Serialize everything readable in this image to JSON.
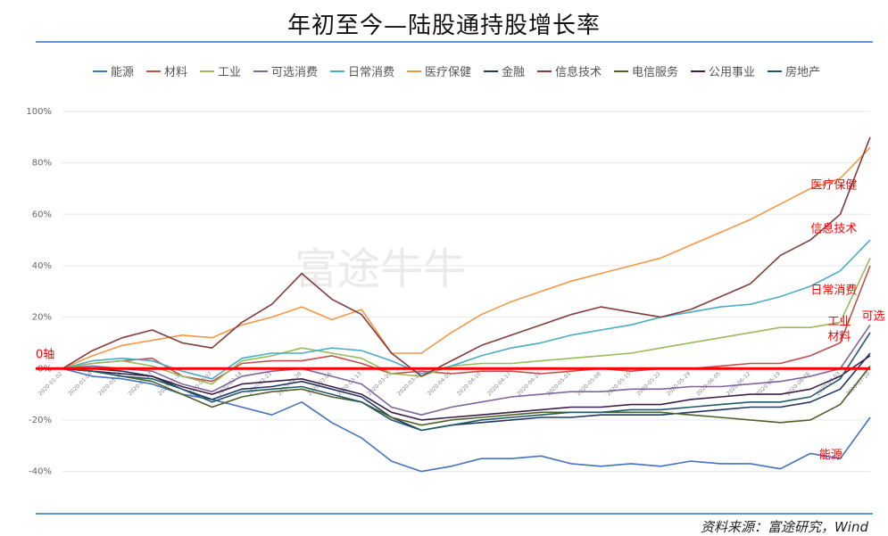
{
  "title": "年初至今—陆股通持股增长率",
  "source": "资料来源：富途研究，Wind",
  "watermark": "富途牛牛",
  "colors": {
    "zero_line": "#ff0000",
    "rule": "#5b9bd5"
  },
  "chart_data": {
    "type": "line",
    "ylim": [
      -45,
      100
    ],
    "yticks": [
      -40,
      -20,
      0,
      20,
      40,
      60,
      80,
      100
    ],
    "ytick_labels": [
      "-40%",
      "-20%",
      "0%",
      "20%",
      "40%",
      "60%",
      "80%",
      "100%"
    ],
    "x": [
      "2020-01-02",
      "2020-01-09",
      "2020-01-16",
      "2020-01-23",
      "2020-01-31",
      "2020-02-07",
      "2020-02-14",
      "2020-02-21",
      "2020-02-28",
      "2020-03-06",
      "2020-03-13",
      "2020-03-20",
      "2020-03-27",
      "2020-04-03",
      "2020-04-10",
      "2020-04-17",
      "2020-04-24",
      "2020-05-01",
      "2020-05-08",
      "2020-05-15",
      "2020-05-22",
      "2020-05-29",
      "2020-06-05",
      "2020-06-12",
      "2020-06-19",
      "2020-06-26",
      "2020-07-03",
      "2020-07-10"
    ],
    "xtick_labels": [
      "2020-01-02",
      "2020-01-09",
      "2020-01-16",
      "2020-01-23",
      "2020-01-31",
      "2020-02-07",
      "2020-02-14",
      "2020-02-21",
      "2020-02-28",
      "2020-03-06",
      "2020-03-13",
      "2020-03-20",
      "2020-03-27",
      "2020-04-03",
      "2020-04-10",
      "2020-04-17",
      "2020-04-24",
      "2020-05-01",
      "2020-05-08",
      "2020-05-15",
      "2020-05-22",
      "2020-05-29",
      "2020-06-05",
      "2020-06-12",
      "2020-06-19",
      "2020-06-26",
      "2020-07-03",
      "2020-07-10"
    ],
    "legend_position": "top",
    "zero_line_label": "0轴",
    "series": [
      {
        "name": "能源",
        "color": "#4472c4",
        "values": [
          0,
          -3,
          -4,
          -6,
          -10,
          -12,
          -15,
          -18,
          -13,
          -21,
          -27,
          -36,
          -40,
          -38,
          -35,
          -35,
          -34,
          -37,
          -38,
          -37,
          -38,
          -36,
          -37,
          -37,
          -39,
          -33,
          -35,
          -19
        ]
      },
      {
        "name": "材料",
        "color": "#c0504d",
        "values": [
          0,
          2,
          3,
          4,
          -3,
          -5,
          2,
          3,
          3,
          5,
          2,
          -2,
          -1,
          -2,
          -1,
          -1,
          -2,
          -1,
          0,
          -1,
          0,
          0,
          1,
          2,
          2,
          5,
          10,
          40
        ]
      },
      {
        "name": "工业",
        "color": "#9bbb59",
        "values": [
          0,
          2,
          3,
          1,
          -3,
          -6,
          3,
          5,
          8,
          6,
          4,
          -2,
          -3,
          1,
          2,
          2,
          3,
          4,
          5,
          6,
          8,
          10,
          12,
          14,
          16,
          16,
          18,
          43
        ]
      },
      {
        "name": "可选消费",
        "color": "#8064a2",
        "values": [
          0,
          1,
          0,
          -1,
          -6,
          -9,
          -3,
          -1,
          0,
          -3,
          -6,
          -15,
          -18,
          -15,
          -13,
          -11,
          -10,
          -9,
          -9,
          -8,
          -8,
          -7,
          -7,
          -6,
          -5,
          -3,
          0,
          17
        ]
      },
      {
        "name": "日常消费",
        "color": "#4bacc6",
        "values": [
          0,
          3,
          4,
          3,
          -1,
          -4,
          4,
          6,
          6,
          8,
          7,
          3,
          -2,
          1,
          5,
          8,
          10,
          13,
          15,
          17,
          20,
          22,
          24,
          25,
          28,
          32,
          38,
          50
        ]
      },
      {
        "name": "医疗保健",
        "color": "#f79646",
        "values": [
          0,
          5,
          9,
          11,
          13,
          12,
          17,
          20,
          24,
          19,
          23,
          6,
          6,
          14,
          21,
          26,
          30,
          34,
          37,
          40,
          43,
          48,
          53,
          58,
          64,
          70,
          74,
          86
        ]
      },
      {
        "name": "金融",
        "color": "#1f3864",
        "values": [
          0,
          0,
          -1,
          -3,
          -8,
          -12,
          -8,
          -7,
          -5,
          -8,
          -11,
          -19,
          -24,
          -22,
          -21,
          -20,
          -19,
          -19,
          -18,
          -18,
          -18,
          -17,
          -16,
          -15,
          -15,
          -13,
          -8,
          6
        ]
      },
      {
        "name": "信息技术",
        "color": "#843c3c",
        "values": [
          0,
          7,
          12,
          15,
          10,
          8,
          18,
          25,
          37,
          27,
          21,
          6,
          -3,
          3,
          9,
          13,
          17,
          21,
          24,
          22,
          20,
          23,
          28,
          33,
          44,
          50,
          60,
          90
        ]
      },
      {
        "name": "电信服务",
        "color": "#4f6228",
        "values": [
          0,
          -1,
          -3,
          -5,
          -10,
          -15,
          -11,
          -9,
          -8,
          -11,
          -13,
          -19,
          -22,
          -20,
          -19,
          -18,
          -17,
          -17,
          -17,
          -17,
          -17,
          -18,
          -19,
          -20,
          -21,
          -20,
          -14,
          1
        ]
      },
      {
        "name": "公用事业",
        "color": "#3c1f4b",
        "values": [
          0,
          -1,
          -2,
          -3,
          -7,
          -10,
          -6,
          -5,
          -4,
          -7,
          -10,
          -17,
          -20,
          -19,
          -18,
          -17,
          -16,
          -15,
          -15,
          -14,
          -14,
          -12,
          -11,
          -10,
          -10,
          -8,
          -3,
          5
        ]
      },
      {
        "name": "房地产",
        "color": "#215967",
        "values": [
          0,
          -1,
          -3,
          -4,
          -8,
          -13,
          -9,
          -8,
          -7,
          -10,
          -13,
          -20,
          -24,
          -22,
          -20,
          -19,
          -18,
          -17,
          -17,
          -16,
          -16,
          -15,
          -14,
          -13,
          -13,
          -11,
          -4,
          14
        ]
      }
    ],
    "annotations": [
      {
        "text": "医疗保健",
        "x": "2020-06-26",
        "y": 70,
        "color": "#ff0000"
      },
      {
        "text": "信息技术",
        "x": "2020-06-26",
        "y": 53,
        "color": "#ff0000"
      },
      {
        "text": "日常消费",
        "x": "2020-06-26",
        "y": 29,
        "color": "#ff0000"
      },
      {
        "text": "工业",
        "x": "2020-06-30",
        "y": 17,
        "color": "#ff0000"
      },
      {
        "text": "材料",
        "x": "2020-06-30",
        "y": 11,
        "color": "#ff0000"
      },
      {
        "text": "可选",
        "x": "2020-07-08",
        "y": 19,
        "color": "#ff0000"
      },
      {
        "text": "能源",
        "x": "2020-06-28",
        "y": -35,
        "color": "#ff0000"
      }
    ]
  }
}
